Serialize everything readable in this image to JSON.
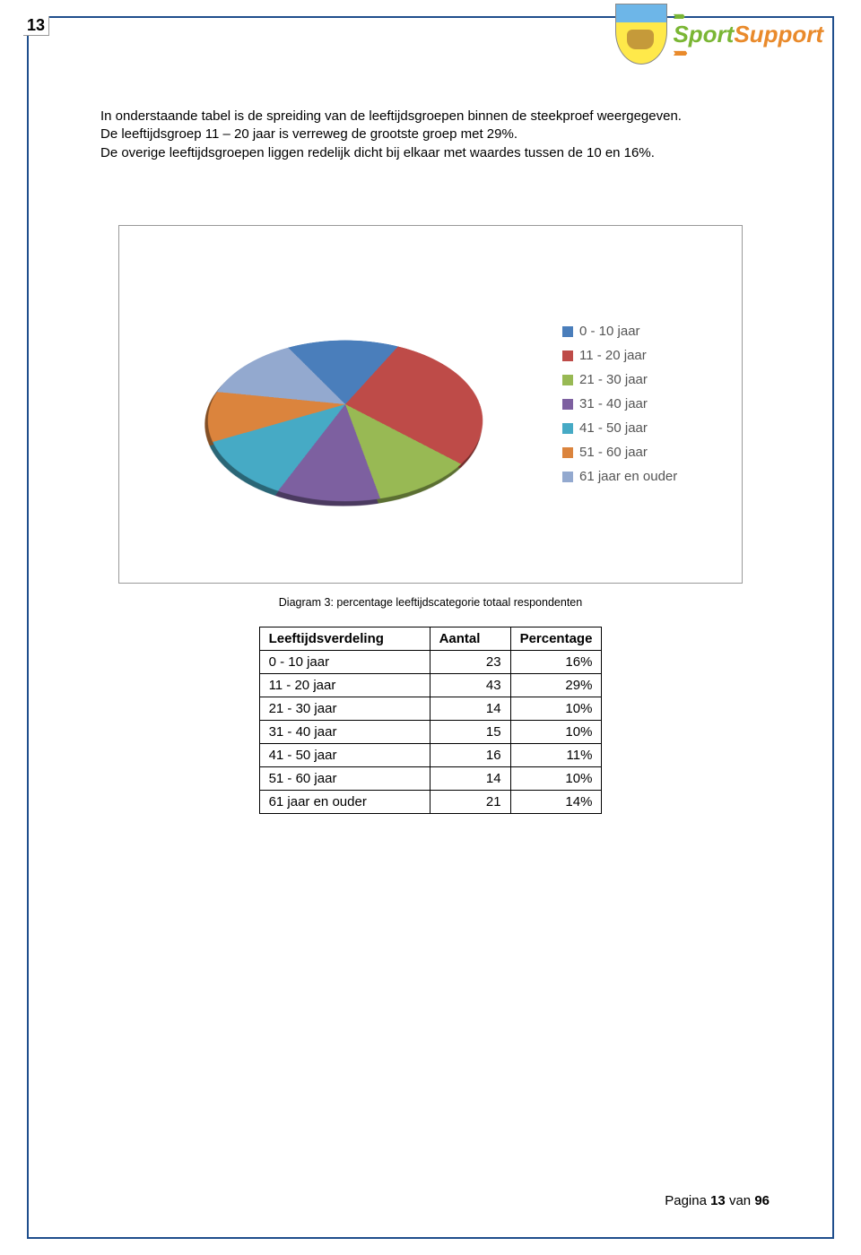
{
  "page": {
    "number_top": "13",
    "footer_prefix": "Pagina ",
    "footer_page": "13",
    "footer_mid": " van ",
    "footer_total": "96"
  },
  "logos": {
    "sport": "Sport",
    "support": "Support"
  },
  "intro": {
    "line1": "In onderstaande tabel is de spreiding van de leeftijdsgroepen binnen de steekproef weergegeven.",
    "line2": "De leeftijdsgroep 11 – 20 jaar is verreweg de grootste groep met 29%.",
    "line3": "De overige leeftijdsgroepen liggen redelijk dicht bij elkaar met waardes tussen de 10 en 16%."
  },
  "chart": {
    "type": "pie",
    "title": "Diagram 3: percentage leeftijdscategorie totaal respondenten",
    "background_color": "#ffffff",
    "border_color": "#999999",
    "legend_font_size": 15,
    "legend_text_color": "#595959",
    "exploded": true,
    "tilt_deg": 55,
    "series": [
      {
        "label": "0 - 10 jaar",
        "value": 16,
        "color": "#4a7ebb"
      },
      {
        "label": "11 - 20 jaar",
        "value": 29,
        "color": "#be4b48"
      },
      {
        "label": "21 - 30 jaar",
        "value": 10,
        "color": "#98b954"
      },
      {
        "label": "31 - 40 jaar",
        "value": 10,
        "color": "#7d60a0"
      },
      {
        "label": "41 - 50 jaar",
        "value": 11,
        "color": "#46aac5"
      },
      {
        "label": "51 - 60 jaar",
        "value": 10,
        "color": "#db843d"
      },
      {
        "label": "61 jaar en ouder",
        "value": 14,
        "color": "#93a9cf"
      }
    ]
  },
  "table": {
    "columns": [
      "Leeftijdsverdeling",
      "Aantal",
      "Percentage"
    ],
    "col_align": [
      "left",
      "right",
      "right"
    ],
    "rows": [
      [
        "0 - 10 jaar",
        "23",
        "16%"
      ],
      [
        "11 - 20 jaar",
        "43",
        "29%"
      ],
      [
        "21 - 30 jaar",
        "14",
        "10%"
      ],
      [
        "31 - 40 jaar",
        "15",
        "10%"
      ],
      [
        "41 - 50 jaar",
        "16",
        "11%"
      ],
      [
        "51 - 60 jaar",
        "14",
        "10%"
      ],
      [
        "61 jaar en ouder",
        "21",
        "14%"
      ]
    ]
  }
}
